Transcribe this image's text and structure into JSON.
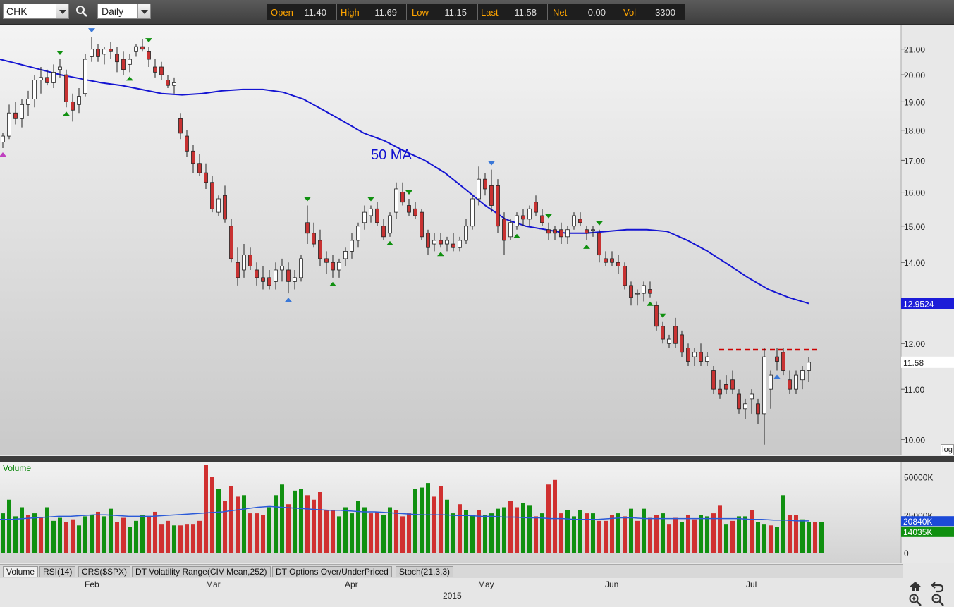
{
  "toolbar": {
    "symbol": "CHK",
    "period": "Daily",
    "quote": {
      "open_label": "Open",
      "open": "11.40",
      "high_label": "High",
      "high": "11.69",
      "low_label": "Low",
      "low": "11.15",
      "last_label": "Last",
      "last": "11.58",
      "net_label": "Net",
      "net": "0.00",
      "vol_label": "Vol",
      "vol": "3300"
    }
  },
  "price_axis": {
    "ticks": [
      "21.00",
      "20.00",
      "19.00",
      "18.00",
      "17.00",
      "16.00",
      "15.00",
      "14.00",
      "12.00",
      "11.00",
      "10.00"
    ],
    "ma_badge": "12.9524",
    "last_badge": "11.58",
    "log_label": "log"
  },
  "annotation": {
    "ma_label": "50 MA"
  },
  "volume": {
    "label": "Volume",
    "ticks": [
      "50000K",
      "25000K",
      "0"
    ],
    "badge_avg": "20840K",
    "badge_last": "14035K"
  },
  "indicator_tabs": [
    "Volume",
    "RSI(14)",
    "CRS($SPX)",
    "DT Volatility Range(CIV Mean,252)",
    "DT Options Over/UnderPriced",
    "Stoch(21,3,3)"
  ],
  "time_axis": {
    "months": [
      "Feb",
      "Mar",
      "Apr",
      "May",
      "Jun",
      "Jul"
    ],
    "year": "2015"
  },
  "colors": {
    "up": "#ffffff",
    "down": "#c83232",
    "ma": "#1414d2",
    "vol_up": "#109010",
    "vol_down": "#d03030",
    "resistance": "#cc0000"
  },
  "chart_data": {
    "type": "candlestick",
    "scale": "log",
    "ylim": [
      9.7,
      22.0
    ],
    "candles": [
      [
        17.6,
        17.9,
        17.4,
        17.8
      ],
      [
        17.8,
        18.9,
        17.7,
        18.6
      ],
      [
        18.6,
        19.0,
        18.2,
        18.4
      ],
      [
        18.4,
        19.1,
        18.1,
        18.9
      ],
      [
        18.9,
        19.4,
        18.5,
        19.1
      ],
      [
        19.1,
        20.0,
        18.8,
        19.8
      ],
      [
        19.8,
        20.3,
        19.3,
        19.9
      ],
      [
        19.9,
        20.2,
        19.6,
        19.7
      ],
      [
        19.7,
        20.4,
        19.5,
        20.1
      ],
      [
        20.2,
        20.6,
        19.9,
        20.3
      ],
      [
        20.0,
        20.2,
        18.8,
        19.0
      ],
      [
        19.0,
        19.3,
        18.3,
        18.7
      ],
      [
        18.9,
        19.5,
        18.6,
        19.2
      ],
      [
        19.3,
        20.8,
        19.2,
        20.6
      ],
      [
        20.7,
        21.5,
        20.5,
        21.0
      ],
      [
        21.0,
        21.2,
        20.5,
        20.7
      ],
      [
        20.8,
        21.1,
        20.4,
        21.0
      ],
      [
        21.0,
        21.3,
        20.6,
        20.9
      ],
      [
        20.8,
        21.1,
        20.1,
        20.5
      ],
      [
        20.6,
        20.9,
        20.0,
        20.2
      ],
      [
        20.4,
        20.8,
        20.1,
        20.6
      ],
      [
        20.9,
        21.2,
        20.7,
        21.1
      ],
      [
        21.1,
        21.4,
        20.9,
        21.0
      ],
      [
        20.9,
        21.1,
        20.3,
        20.6
      ],
      [
        20.3,
        20.6,
        19.9,
        20.1
      ],
      [
        20.3,
        20.5,
        19.8,
        20.0
      ],
      [
        19.8,
        20.0,
        19.5,
        19.6
      ],
      [
        19.6,
        19.9,
        19.3,
        19.7
      ],
      [
        18.4,
        18.6,
        17.7,
        17.9
      ],
      [
        17.8,
        18.0,
        17.1,
        17.3
      ],
      [
        17.3,
        17.5,
        16.6,
        16.9
      ],
      [
        16.9,
        17.2,
        16.5,
        16.6
      ],
      [
        16.6,
        16.9,
        16.1,
        16.3
      ],
      [
        16.3,
        16.5,
        15.4,
        15.5
      ],
      [
        15.4,
        15.9,
        15.3,
        15.8
      ],
      [
        15.9,
        16.2,
        15.1,
        15.2
      ],
      [
        15.0,
        15.2,
        14.0,
        14.1
      ],
      [
        14.0,
        14.4,
        13.4,
        13.6
      ],
      [
        13.8,
        14.5,
        13.6,
        14.2
      ],
      [
        14.2,
        14.4,
        13.8,
        13.9
      ],
      [
        13.8,
        14.0,
        13.4,
        13.6
      ],
      [
        13.6,
        13.9,
        13.3,
        13.5
      ],
      [
        13.6,
        13.8,
        13.3,
        13.4
      ],
      [
        13.5,
        14.0,
        13.3,
        13.8
      ],
      [
        13.8,
        14.1,
        13.5,
        13.9
      ],
      [
        13.8,
        14.0,
        13.2,
        13.5
      ],
      [
        13.5,
        13.8,
        13.3,
        13.6
      ],
      [
        13.6,
        14.2,
        13.5,
        14.1
      ],
      [
        15.1,
        15.6,
        14.5,
        14.8
      ],
      [
        14.8,
        15.1,
        14.4,
        14.5
      ],
      [
        14.6,
        14.9,
        13.9,
        14.1
      ],
      [
        14.1,
        14.3,
        13.7,
        14.0
      ],
      [
        14.0,
        14.2,
        13.6,
        13.8
      ],
      [
        13.8,
        14.1,
        13.6,
        14.0
      ],
      [
        14.1,
        14.4,
        13.9,
        14.3
      ],
      [
        14.3,
        14.8,
        14.1,
        14.6
      ],
      [
        14.6,
        15.1,
        14.4,
        15.0
      ],
      [
        15.1,
        15.6,
        14.9,
        15.4
      ],
      [
        15.3,
        15.6,
        15.1,
        15.5
      ],
      [
        15.5,
        15.7,
        15.0,
        15.1
      ],
      [
        15.0,
        15.2,
        14.6,
        14.7
      ],
      [
        14.8,
        15.4,
        14.7,
        15.3
      ],
      [
        15.4,
        16.3,
        15.2,
        16.1
      ],
      [
        16.0,
        16.3,
        15.6,
        15.7
      ],
      [
        15.6,
        15.8,
        15.3,
        15.4
      ],
      [
        15.5,
        15.7,
        15.2,
        15.3
      ],
      [
        15.4,
        15.5,
        14.6,
        14.7
      ],
      [
        14.8,
        14.9,
        14.2,
        14.4
      ],
      [
        14.5,
        14.8,
        14.3,
        14.6
      ],
      [
        14.6,
        14.8,
        14.4,
        14.5
      ],
      [
        14.5,
        14.7,
        14.3,
        14.6
      ],
      [
        14.5,
        14.8,
        14.3,
        14.4
      ],
      [
        14.4,
        14.7,
        14.3,
        14.6
      ],
      [
        14.6,
        15.2,
        14.5,
        15.0
      ],
      [
        15.0,
        15.9,
        14.9,
        15.8
      ],
      [
        15.8,
        16.8,
        15.6,
        16.4
      ],
      [
        16.4,
        16.6,
        15.9,
        16.1
      ],
      [
        16.2,
        16.7,
        15.4,
        15.6
      ],
      [
        16.2,
        16.4,
        14.8,
        15.0
      ],
      [
        15.2,
        15.4,
        14.2,
        14.6
      ],
      [
        14.7,
        15.2,
        14.6,
        15.1
      ],
      [
        15.0,
        15.4,
        14.9,
        15.3
      ],
      [
        15.3,
        15.5,
        15.0,
        15.2
      ],
      [
        15.2,
        15.6,
        15.0,
        15.5
      ],
      [
        15.7,
        15.9,
        15.3,
        15.4
      ],
      [
        15.3,
        15.5,
        15.0,
        15.1
      ],
      [
        14.9,
        15.1,
        14.6,
        14.8
      ],
      [
        14.9,
        15.0,
        14.6,
        14.8
      ],
      [
        14.9,
        15.1,
        14.5,
        14.7
      ],
      [
        14.7,
        15.0,
        14.5,
        14.9
      ],
      [
        15.0,
        15.4,
        14.9,
        15.3
      ],
      [
        15.2,
        15.4,
        15.0,
        15.1
      ],
      [
        14.9,
        15.0,
        14.6,
        14.8
      ],
      [
        14.9,
        15.0,
        14.7,
        14.9
      ],
      [
        14.8,
        14.9,
        14.0,
        14.2
      ],
      [
        14.1,
        14.3,
        13.9,
        14.0
      ],
      [
        14.1,
        14.3,
        13.9,
        14.0
      ],
      [
        14.0,
        14.2,
        13.7,
        13.9
      ],
      [
        13.9,
        14.0,
        13.3,
        13.4
      ],
      [
        13.4,
        13.5,
        12.9,
        13.1
      ],
      [
        13.2,
        13.3,
        12.9,
        13.2
      ],
      [
        13.2,
        13.5,
        13.0,
        13.4
      ],
      [
        13.3,
        13.5,
        13.1,
        13.2
      ],
      [
        12.9,
        13.0,
        12.3,
        12.4
      ],
      [
        12.4,
        12.5,
        12.0,
        12.1
      ],
      [
        12.0,
        12.2,
        11.9,
        12.1
      ],
      [
        12.4,
        12.6,
        11.9,
        12.0
      ],
      [
        12.2,
        12.3,
        11.7,
        11.8
      ],
      [
        11.9,
        12.0,
        11.5,
        11.6
      ],
      [
        11.7,
        11.9,
        11.5,
        11.8
      ],
      [
        11.8,
        12.0,
        11.5,
        11.6
      ],
      [
        11.6,
        11.8,
        11.5,
        11.7
      ],
      [
        11.4,
        11.5,
        10.9,
        11.0
      ],
      [
        11.0,
        11.2,
        10.8,
        10.9
      ],
      [
        11.1,
        11.3,
        10.9,
        11.0
      ],
      [
        11.2,
        11.4,
        10.9,
        11.0
      ],
      [
        10.9,
        11.0,
        10.5,
        10.6
      ],
      [
        10.6,
        10.8,
        10.4,
        10.7
      ],
      [
        10.8,
        11.0,
        10.5,
        10.9
      ],
      [
        10.7,
        10.8,
        10.3,
        10.5
      ],
      [
        10.5,
        11.9,
        9.9,
        11.7
      ],
      [
        11.0,
        11.4,
        10.6,
        11.3
      ],
      [
        11.7,
        11.9,
        11.4,
        11.6
      ],
      [
        11.8,
        11.9,
        11.3,
        11.4
      ],
      [
        11.2,
        11.4,
        10.9,
        11.0
      ],
      [
        11.0,
        11.4,
        10.9,
        11.3
      ],
      [
        11.2,
        11.5,
        11.0,
        11.4
      ],
      [
        11.4,
        11.69,
        11.15,
        11.58
      ]
    ],
    "ma50": [
      20.6,
      20.4,
      20.2,
      20.0,
      19.85,
      19.7,
      19.6,
      19.45,
      19.3,
      19.25,
      19.3,
      19.4,
      19.45,
      19.45,
      19.35,
      19.1,
      18.7,
      18.3,
      17.9,
      17.65,
      17.3,
      17.0,
      16.6,
      16.1,
      15.6,
      15.2,
      15.0,
      14.9,
      14.8,
      14.8,
      14.85,
      14.9,
      14.9,
      14.85,
      14.6,
      14.3,
      13.95,
      13.6,
      13.3,
      13.1,
      12.95
    ],
    "resistance": 11.86,
    "markers": [
      {
        "i": 0,
        "type": "low",
        "color": "magenta"
      },
      {
        "i": 9,
        "type": "high",
        "color": "green"
      },
      {
        "i": 10,
        "type": "low",
        "color": "green"
      },
      {
        "i": 14,
        "type": "high",
        "color": "blue"
      },
      {
        "i": 20,
        "type": "low",
        "color": "green"
      },
      {
        "i": 23,
        "type": "high",
        "color": "green"
      },
      {
        "i": 45,
        "type": "low",
        "color": "blue"
      },
      {
        "i": 48,
        "type": "high",
        "color": "green"
      },
      {
        "i": 52,
        "type": "low",
        "color": "green"
      },
      {
        "i": 58,
        "type": "high",
        "color": "green"
      },
      {
        "i": 61,
        "type": "low",
        "color": "green"
      },
      {
        "i": 64,
        "type": "high",
        "color": "green"
      },
      {
        "i": 69,
        "type": "low",
        "color": "green"
      },
      {
        "i": 77,
        "type": "high",
        "color": "blue"
      },
      {
        "i": 81,
        "type": "low",
        "color": "green"
      },
      {
        "i": 86,
        "type": "high",
        "color": "green"
      },
      {
        "i": 92,
        "type": "low",
        "color": "green"
      },
      {
        "i": 94,
        "type": "high",
        "color": "green"
      },
      {
        "i": 102,
        "type": "low",
        "color": "green"
      },
      {
        "i": 104,
        "type": "high",
        "color": "green"
      },
      {
        "i": 122,
        "type": "low",
        "color": "blue"
      }
    ],
    "volume": [
      26,
      35,
      24,
      30,
      25,
      26,
      23,
      30,
      21,
      23,
      20,
      22,
      18,
      24,
      25,
      27,
      24,
      29,
      20,
      23,
      17,
      21,
      25,
      24,
      27,
      19,
      21,
      18,
      18,
      19,
      19,
      21,
      58,
      50,
      42,
      34,
      44,
      37,
      38,
      26,
      26,
      25,
      30,
      38,
      45,
      32,
      41,
      42,
      38,
      35,
      40,
      28,
      28,
      24,
      30,
      26,
      34,
      30,
      26,
      27,
      25,
      30,
      28,
      24,
      26,
      42,
      43,
      46,
      37,
      44,
      35,
      26,
      32,
      28,
      25,
      28,
      25,
      26,
      29,
      30,
      34,
      30,
      33,
      31,
      24,
      26,
      45,
      48,
      26,
      28,
      24,
      28,
      26,
      26,
      21,
      21,
      25,
      26,
      24,
      29,
      21,
      29,
      23,
      25,
      26,
      19,
      23,
      20,
      25,
      22,
      25,
      24,
      26,
      31,
      19,
      21,
      24,
      24,
      28,
      20,
      19,
      18,
      17,
      38,
      25,
      25,
      22,
      20,
      20,
      20
    ],
    "volume_up": [
      1,
      1,
      1,
      1,
      0,
      1,
      0,
      1,
      1,
      1,
      0,
      0,
      1,
      1,
      1,
      0,
      1,
      1,
      0,
      0,
      1,
      1,
      1,
      0,
      0,
      0,
      0,
      1,
      0,
      0,
      0,
      0,
      0,
      0,
      1,
      0,
      0,
      0,
      1,
      0,
      0,
      0,
      1,
      1,
      1,
      0,
      1,
      1,
      0,
      0,
      0,
      0,
      0,
      1,
      1,
      1,
      1,
      1,
      0,
      0,
      1,
      1,
      0,
      0,
      0,
      1,
      1,
      1,
      0,
      0,
      1,
      1,
      0,
      1,
      1,
      0,
      1,
      1,
      1,
      1,
      0,
      0,
      1,
      1,
      0,
      1,
      0,
      0,
      0,
      1,
      1,
      1,
      0,
      1,
      0,
      0,
      0,
      1,
      0,
      1,
      0,
      1,
      0,
      0,
      1,
      0,
      0,
      1,
      0,
      0,
      1,
      1,
      0,
      0,
      1,
      0,
      1,
      1,
      0,
      1,
      1,
      0,
      1,
      1,
      0,
      0,
      1,
      1,
      0,
      1
    ],
    "volume_avg": [
      22,
      22,
      22.5,
      23,
      23.5,
      24,
      24,
      24.5,
      25,
      25,
      24.5,
      24,
      24,
      24,
      24.5,
      25,
      25.5,
      26,
      26.5,
      27,
      28,
      29,
      30,
      30.5,
      30,
      29.5,
      29,
      28.5,
      28,
      28,
      27.5,
      27,
      27,
      26.5,
      26,
      25.5,
      25,
      25,
      25,
      24.5,
      24.5,
      24,
      24,
      23.5,
      23.5,
      23,
      23,
      22.5,
      22.5,
      22,
      22,
      22,
      22.5,
      23,
      23,
      22.5,
      22.5,
      22.5,
      22.5,
      22.5,
      22.5,
      22.5,
      22.5,
      22.5,
      22,
      22,
      21.5,
      21.5,
      21,
      21
    ]
  }
}
